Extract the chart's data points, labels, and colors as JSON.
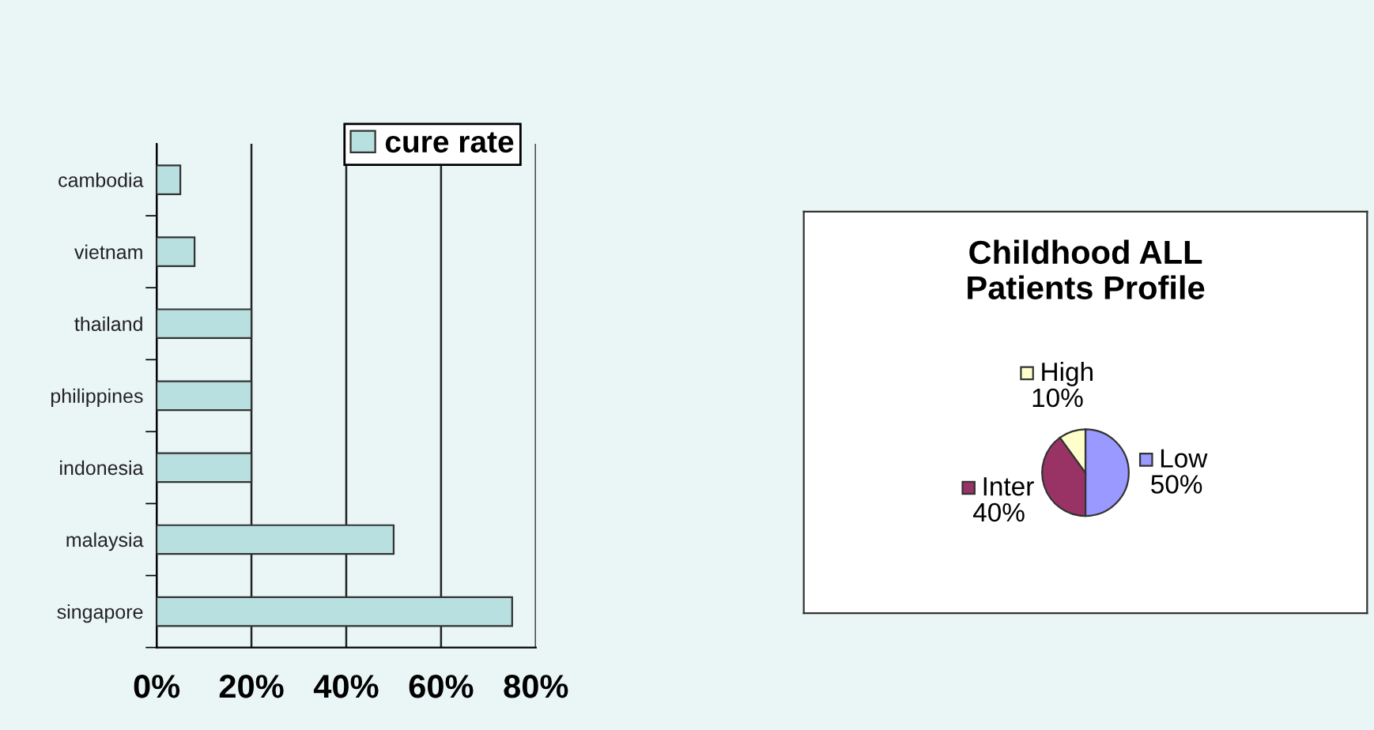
{
  "chart_data": [
    {
      "type": "bar",
      "orientation": "horizontal",
      "categories": [
        "cambodia",
        "vietnam",
        "thailand",
        "philippines",
        "indonesia",
        "malaysia",
        "singapore"
      ],
      "series": [
        {
          "name": "cure rate",
          "color": "#b8e0e0",
          "values": [
            5,
            8,
            20,
            20,
            20,
            50,
            75
          ]
        }
      ],
      "xlim": [
        0,
        80
      ],
      "xticks": [
        {
          "value": 0,
          "label": "0%"
        },
        {
          "value": 20,
          "label": "20%"
        },
        {
          "value": 40,
          "label": "40%"
        },
        {
          "value": 60,
          "label": "60%"
        },
        {
          "value": 80,
          "label": "80%"
        }
      ],
      "grid": "x",
      "legend": "top right"
    },
    {
      "type": "pie",
      "title": "Childhood ALL\nPatients Profile",
      "categories": [
        "Low",
        "Inter",
        "High"
      ],
      "values": [
        50,
        40,
        10
      ],
      "colors": [
        "#9999ff",
        "#993366",
        "#ffffcc"
      ],
      "value_labels": [
        "50%",
        "40%",
        "10%"
      ],
      "legend": "center"
    }
  ]
}
